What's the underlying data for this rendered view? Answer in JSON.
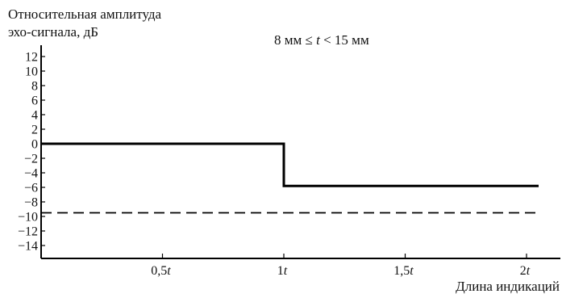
{
  "chart_data": {
    "type": "line",
    "ylabel_line1": "Относительная амплитуда",
    "ylabel_line2": "эхо-сигнала, дБ",
    "xlabel": "Длина индикаций",
    "annotation": {
      "prefix": "8 мм ≤ ",
      "var": "t",
      "suffix": " < 15 мм"
    },
    "ylim": [
      -15,
      12
    ],
    "xlim": [
      0,
      2.05
    ],
    "y_ticks": [
      12,
      10,
      8,
      6,
      4,
      2,
      0,
      -2,
      -4,
      -6,
      -8,
      -10,
      -12,
      -14
    ],
    "x_ticks": [
      {
        "value": 0.5,
        "num": "0,5",
        "var": "t"
      },
      {
        "value": 1.0,
        "num": "1",
        "var": "t"
      },
      {
        "value": 1.5,
        "num": "1,5",
        "var": "t"
      },
      {
        "value": 2.0,
        "num": "2",
        "var": "t"
      }
    ],
    "series": [
      {
        "style": "solid",
        "x": [
          0,
          1.0,
          1.0,
          2.05
        ],
        "y": [
          0,
          0,
          -5.8,
          -5.8
        ]
      },
      {
        "style": "dashed",
        "x": [
          0,
          2.05
        ],
        "y": [
          -9.5,
          -9.5
        ]
      }
    ],
    "colors": {
      "line": "#000000",
      "axis": "#000000"
    }
  }
}
